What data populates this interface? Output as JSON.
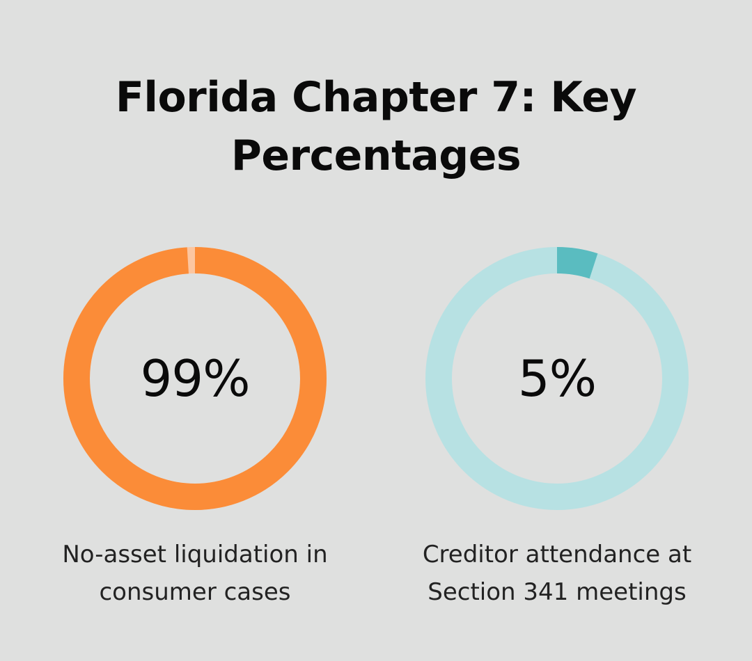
{
  "title": {
    "line1": "Florida Chapter 7: Key",
    "line2": "Percentages"
  },
  "chart_data": [
    {
      "type": "pie",
      "donut": true,
      "value": 99,
      "max": 100,
      "center_label": "99%",
      "caption_lines": [
        "No-asset liquidation in",
        "consumer cases"
      ],
      "colors": {
        "fill": "#fb8c38",
        "remainder": "#fcc6a0"
      }
    },
    {
      "type": "pie",
      "donut": true,
      "value": 5,
      "max": 100,
      "center_label": "5%",
      "caption_lines": [
        "Creditor attendance at",
        "Section 341 meetings"
      ],
      "colors": {
        "fill": "#5abcc0",
        "remainder": "#b7e1e3"
      }
    }
  ]
}
